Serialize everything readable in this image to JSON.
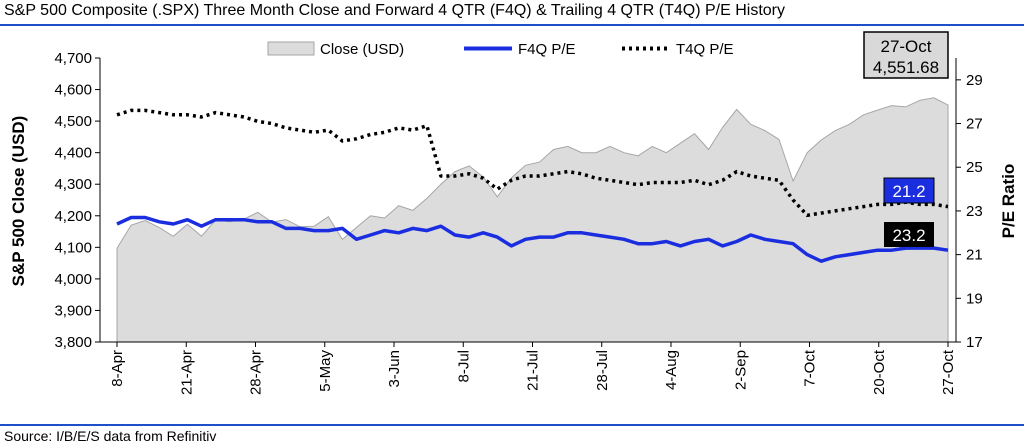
{
  "title": "S&P 500 Composite (.SPX) Three Month Close and Forward 4 QTR (F4Q) & Trailing 4 QTR (T4Q) P/E History",
  "source": "Source: I/B/E/S data from Refinitiv",
  "colors": {
    "area_fill": "#dcdcdc",
    "area_stroke": "#a6a6a6",
    "f4q": "#1a2ee0",
    "t4q": "#000000",
    "rule": "#1f4fc8"
  },
  "chart_data": {
    "type": "area",
    "ylabel": "S&P 500 Close (USD)",
    "y2label": "P/E Ratio",
    "ylim": [
      3800,
      4700
    ],
    "y_ticks": [
      "3,800",
      "3,900",
      "4,000",
      "4,100",
      "4,200",
      "4,300",
      "4,400",
      "4,500",
      "4,600",
      "4,700"
    ],
    "y2lim": [
      17,
      30
    ],
    "y2_ticks": [
      "17",
      "19",
      "21",
      "23",
      "25",
      "27",
      "29"
    ],
    "x_tick_labels": [
      "8-Apr",
      "21-Apr",
      "28-Apr",
      "5-May",
      "3-Jun",
      "8-Jul",
      "21-Jul",
      "28-Jul",
      "4-Aug",
      "2-Sep",
      "7-Oct",
      "20-Oct",
      "27-Oct"
    ],
    "legend": [
      "Close (USD)",
      "F4Q P/E",
      "T4Q P/E"
    ],
    "series": [
      {
        "name": "Close (USD)",
        "axis": "left",
        "values": [
          4097,
          4170,
          4185,
          4163,
          4135,
          4173,
          4135,
          4187,
          4181,
          4189,
          4211,
          4180,
          4188,
          4165,
          4167,
          4197,
          4125,
          4163,
          4200,
          4193,
          4232,
          4217,
          4255,
          4300,
          4340,
          4358,
          4323,
          4260,
          4320,
          4360,
          4370,
          4410,
          4420,
          4400,
          4400,
          4420,
          4400,
          4390,
          4420,
          4400,
          4430,
          4460,
          4410,
          4480,
          4537,
          4490,
          4470,
          4442,
          4310,
          4400,
          4440,
          4470,
          4490,
          4520,
          4535,
          4549,
          4545,
          4566,
          4574,
          4551
        ]
      },
      {
        "name": "F4Q P/E",
        "axis": "right",
        "values": [
          22.4,
          22.7,
          22.7,
          22.5,
          22.4,
          22.6,
          22.3,
          22.6,
          22.6,
          22.6,
          22.5,
          22.5,
          22.2,
          22.2,
          22.1,
          22.1,
          22.2,
          21.7,
          21.9,
          22.1,
          22.0,
          22.2,
          22.1,
          22.3,
          21.9,
          21.8,
          22.0,
          21.8,
          21.4,
          21.7,
          21.8,
          21.8,
          22.0,
          22.0,
          21.9,
          21.8,
          21.7,
          21.5,
          21.5,
          21.6,
          21.4,
          21.6,
          21.7,
          21.4,
          21.6,
          21.9,
          21.7,
          21.6,
          21.5,
          21.0,
          20.7,
          20.9,
          21.0,
          21.1,
          21.2,
          21.2,
          21.3,
          21.3,
          21.3,
          21.2
        ]
      },
      {
        "name": "T4Q P/E",
        "axis": "right",
        "values": [
          27.4,
          27.6,
          27.6,
          27.5,
          27.4,
          27.4,
          27.3,
          27.5,
          27.4,
          27.3,
          27.1,
          27.0,
          26.8,
          26.7,
          26.6,
          26.7,
          26.2,
          26.3,
          26.5,
          26.6,
          26.8,
          26.7,
          26.9,
          24.6,
          24.6,
          24.7,
          24.5,
          24.0,
          24.4,
          24.6,
          24.6,
          24.7,
          24.8,
          24.7,
          24.5,
          24.4,
          24.3,
          24.2,
          24.3,
          24.3,
          24.3,
          24.4,
          24.2,
          24.4,
          24.8,
          24.6,
          24.5,
          24.4,
          23.5,
          22.8,
          22.9,
          23.0,
          23.1,
          23.2,
          23.3,
          23.3,
          23.4,
          23.3,
          23.3,
          23.2
        ]
      }
    ],
    "annotations": {
      "last_date": "27-Oct",
      "last_close": "4,551.68",
      "f4q_last": "21.2",
      "t4q_last": "23.2"
    }
  }
}
